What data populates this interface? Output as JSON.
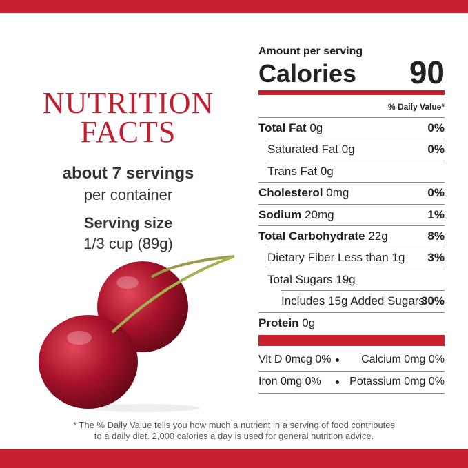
{
  "brand_panel": {
    "title_lines": [
      "NUTRITION",
      "FACTS"
    ],
    "servings": "about 7 servings",
    "servings_note": "per container",
    "serving_size_label": "Serving size",
    "serving_size": "1/3 cup (89g)"
  },
  "label": {
    "amount_per_serving": "Amount per serving",
    "calories_label": "Calories",
    "calories": 90,
    "daily_value_header": "% Daily Value*",
    "rows": [
      {
        "name": "Total Fat",
        "amount": "0g",
        "dv": "0%",
        "sub": [
          {
            "name": "Saturated Fat",
            "amount": "0g",
            "dv": "0%"
          },
          {
            "name": "Trans Fat",
            "amount": "0g"
          }
        ]
      },
      {
        "name": "Cholesterol",
        "amount": "0mg",
        "dv": "0%"
      },
      {
        "name": "Sodium",
        "amount": "20mg",
        "dv": "1%"
      },
      {
        "name": "Total Carbohydrate",
        "amount": "22g",
        "dv": "8%",
        "sub": [
          {
            "name": "Dietary Fiber",
            "amount": "Less than 1g",
            "dv": "3%"
          },
          {
            "name": "Total Sugars",
            "amount": "19g",
            "sub": [
              {
                "name": "Includes 15g Added Sugars",
                "dv": "30%"
              }
            ]
          }
        ]
      },
      {
        "name": "Protein",
        "amount": "0g"
      }
    ],
    "vitamins": [
      [
        "Vit D 0mcg 0%",
        "Calcium 0mg 0%"
      ],
      [
        "Iron 0mg 0%",
        "Potassium 0mg 0%"
      ]
    ]
  },
  "footnote": [
    "* The % Daily Value tells you how much a nutrient in a serving of food contributes",
    "to a daily diet. 2,000 calories a day is used for general nutrition advice."
  ]
}
